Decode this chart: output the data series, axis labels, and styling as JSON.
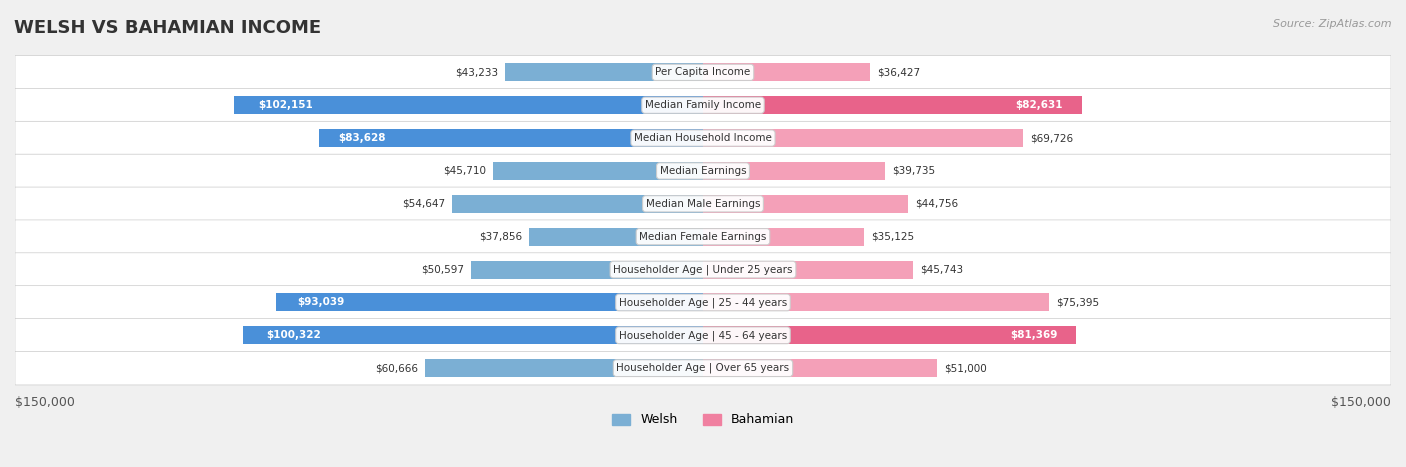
{
  "title": "WELSH VS BAHAMIAN INCOME",
  "source": "Source: ZipAtlas.com",
  "categories": [
    "Per Capita Income",
    "Median Family Income",
    "Median Household Income",
    "Median Earnings",
    "Median Male Earnings",
    "Median Female Earnings",
    "Householder Age | Under 25 years",
    "Householder Age | 25 - 44 years",
    "Householder Age | 45 - 64 years",
    "Householder Age | Over 65 years"
  ],
  "welsh_values": [
    43233,
    102151,
    83628,
    45710,
    54647,
    37856,
    50597,
    93039,
    100322,
    60666
  ],
  "bahamian_values": [
    36427,
    82631,
    69726,
    39735,
    44756,
    35125,
    45743,
    75395,
    81369,
    51000
  ],
  "welsh_labels": [
    "$43,233",
    "$102,151",
    "$83,628",
    "$45,710",
    "$54,647",
    "$37,856",
    "$50,597",
    "$93,039",
    "$100,322",
    "$60,666"
  ],
  "bahamian_labels": [
    "$36,427",
    "$82,631",
    "$69,726",
    "$39,735",
    "$44,756",
    "$35,125",
    "$45,743",
    "$75,395",
    "$81,369",
    "$51,000"
  ],
  "max_value": 150000,
  "welsh_color_bar": "#7bafd4",
  "welsh_color_bar_strong": "#4a90d9",
  "bahamian_color_bar": "#f4a0b8",
  "bahamian_color_bar_strong": "#e8638a",
  "welsh_legend_color": "#7bafd4",
  "bahamian_legend_color": "#f080a0",
  "background_color": "#f0f0f0",
  "row_bg_color": "#f8f8f8",
  "label_color_dark": "#333333",
  "label_color_white": "#ffffff",
  "bar_height": 0.55,
  "x_axis_label_left": "$150,000",
  "x_axis_label_right": "$150,000"
}
